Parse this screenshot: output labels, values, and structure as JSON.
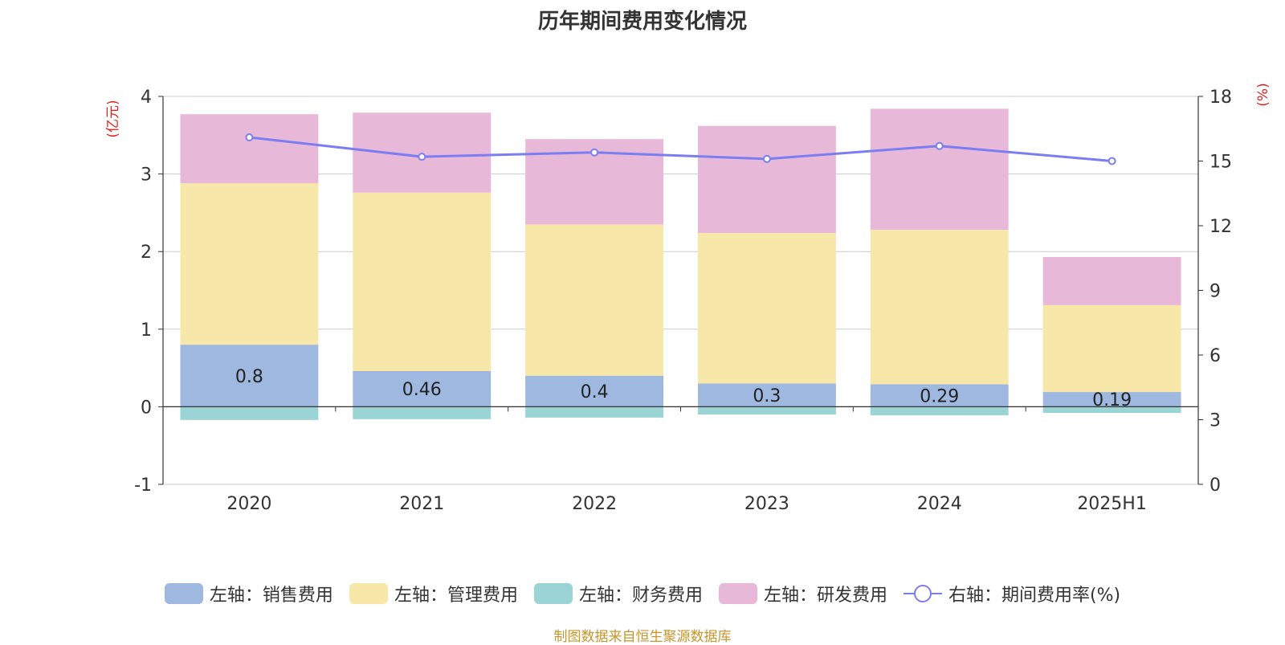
{
  "chart_data": {
    "type": "bar",
    "title": "历年期间费用变化情况",
    "left_axis": {
      "unit_label": "(亿元)",
      "ylim": [
        -1,
        4
      ],
      "ticks": [
        -1,
        0,
        1,
        2,
        3,
        4
      ]
    },
    "right_axis": {
      "unit_label": "(%)",
      "ylim": [
        0,
        18
      ],
      "ticks": [
        0,
        3,
        6,
        9,
        12,
        15,
        18
      ]
    },
    "categories": [
      "2020",
      "2021",
      "2022",
      "2023",
      "2024",
      "2025H1"
    ],
    "stacked": true,
    "grid": true,
    "legend_position": "bottom",
    "series": [
      {
        "name": "左轴：销售费用",
        "axis": "left",
        "color": "#9eb8e0",
        "values": [
          0.8,
          0.46,
          0.4,
          0.3,
          0.29,
          0.19
        ],
        "labels_shown": true
      },
      {
        "name": "左轴：管理费用",
        "axis": "left",
        "color": "#f7e7a8",
        "values": [
          2.08,
          2.3,
          1.95,
          1.94,
          1.99,
          1.12
        ]
      },
      {
        "name": "左轴：财务费用",
        "axis": "left",
        "color": "#9bd4d4",
        "values": [
          -0.17,
          -0.16,
          -0.14,
          -0.1,
          -0.11,
          -0.08
        ]
      },
      {
        "name": "左轴：研发费用",
        "axis": "left",
        "color": "#e8b8d8",
        "values": [
          0.89,
          1.03,
          1.1,
          1.38,
          1.56,
          0.62
        ]
      },
      {
        "name": "右轴：期间费用率(%)",
        "axis": "right",
        "type": "line",
        "color": "#7b7ef0",
        "values": [
          16.1,
          15.2,
          15.4,
          15.1,
          15.7,
          15.0
        ]
      }
    ]
  },
  "source_note": "制图数据来自恒生聚源数据库"
}
